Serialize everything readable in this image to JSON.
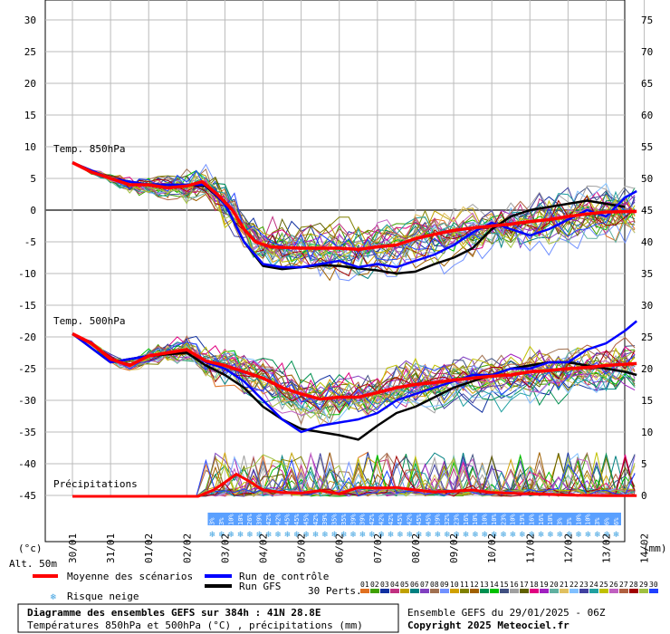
{
  "chart_data": {
    "type": "line",
    "units_left": "(°c)",
    "units_right": "(mm)",
    "altitude": "Alt. 50m",
    "left_axis": [
      30,
      25,
      20,
      15,
      10,
      5,
      0,
      -5,
      -10,
      -15,
      -20,
      -25,
      -30,
      -35,
      -40,
      -45
    ],
    "right_axis": [
      75,
      70,
      65,
      60,
      55,
      50,
      45,
      40,
      35,
      30,
      25,
      20,
      15,
      10,
      5,
      0
    ],
    "dates": [
      "30/01",
      "31/01",
      "01/02",
      "02/02",
      "03/02",
      "04/02",
      "05/02",
      "06/02",
      "07/02",
      "08/02",
      "09/02",
      "10/02",
      "11/02",
      "12/02",
      "13/02",
      "14/02"
    ],
    "panel_labels": {
      "t850": "Temp. 850hPa",
      "t500": "Temp. 500hPa",
      "precip": "Précipitations"
    },
    "snow_risk_percent": [
      "3%",
      "3%",
      "10%",
      "10%",
      "26%",
      "39%",
      "42%",
      "42%",
      "45%",
      "45%",
      "45%",
      "42%",
      "39%",
      "35%",
      "35%",
      "39%",
      "39%",
      "42%",
      "42%",
      "42%",
      "45%",
      "42%",
      "45%",
      "45%",
      "39%",
      "32%",
      "23%",
      "16%",
      "10%",
      "10%",
      "10%",
      "23%",
      "10%",
      "19%",
      "16%",
      "16%",
      "10%",
      "3%",
      "3%",
      "10%",
      "10%",
      "3%",
      "6%",
      "6%"
    ],
    "t850_mean": [
      [
        0,
        7.5
      ],
      [
        0.5,
        6
      ],
      [
        1,
        5
      ],
      [
        1.5,
        4
      ],
      [
        2,
        4
      ],
      [
        2.5,
        3.5
      ],
      [
        3,
        3.8
      ],
      [
        3.4,
        4.5
      ],
      [
        3.8,
        2.5
      ],
      [
        4.2,
        0
      ],
      [
        4.5,
        -3
      ],
      [
        4.8,
        -5
      ],
      [
        5.2,
        -5.8
      ],
      [
        6,
        -6
      ],
      [
        7,
        -6
      ],
      [
        7.5,
        -6.2
      ],
      [
        8,
        -5.8
      ],
      [
        8.5,
        -5.5
      ],
      [
        9,
        -4.5
      ],
      [
        9.5,
        -3.8
      ],
      [
        10,
        -3.2
      ],
      [
        10.5,
        -2.8
      ],
      [
        11,
        -2.5
      ],
      [
        11.5,
        -2.2
      ],
      [
        12,
        -1.8
      ],
      [
        12.5,
        -1.5
      ],
      [
        13,
        -1
      ],
      [
        13.5,
        -0.6
      ],
      [
        14,
        -0.3
      ],
      [
        14.8,
        -0.2
      ]
    ],
    "t850_control": [
      [
        0,
        7.5
      ],
      [
        1,
        5
      ],
      [
        2,
        4
      ],
      [
        3,
        4
      ],
      [
        3.5,
        4
      ],
      [
        4,
        1
      ],
      [
        4.5,
        -5
      ],
      [
        5,
        -8.5
      ],
      [
        5.5,
        -9
      ],
      [
        6,
        -9
      ],
      [
        6.5,
        -8.5
      ],
      [
        7,
        -8
      ],
      [
        7.5,
        -9
      ],
      [
        8,
        -8.5
      ],
      [
        8.5,
        -9
      ],
      [
        9,
        -8
      ],
      [
        9.5,
        -7
      ],
      [
        10,
        -5.5
      ],
      [
        10.5,
        -3.5
      ],
      [
        11,
        -2
      ],
      [
        11.5,
        -3
      ],
      [
        12,
        -4
      ],
      [
        12.5,
        -3
      ],
      [
        13,
        -1.5
      ],
      [
        13.5,
        0
      ],
      [
        14,
        -1
      ],
      [
        14.5,
        2
      ],
      [
        14.8,
        3
      ]
    ],
    "t850_gfs": [
      [
        0,
        7.5
      ],
      [
        1,
        5
      ],
      [
        2,
        4
      ],
      [
        3,
        4
      ],
      [
        3.5,
        3.8
      ],
      [
        4,
        1
      ],
      [
        4.5,
        -5
      ],
      [
        5,
        -8.8
      ],
      [
        5.5,
        -9.3
      ],
      [
        6,
        -9
      ],
      [
        6.5,
        -8.7
      ],
      [
        7,
        -8.8
      ],
      [
        7.5,
        -9.2
      ],
      [
        8,
        -9.5
      ],
      [
        8.5,
        -10
      ],
      [
        9,
        -9.7
      ],
      [
        9.5,
        -8.5
      ],
      [
        10,
        -7.5
      ],
      [
        10.5,
        -6
      ],
      [
        11,
        -3
      ],
      [
        11.5,
        -1
      ],
      [
        12,
        0
      ],
      [
        12.5,
        0.5
      ],
      [
        13,
        1
      ],
      [
        13.5,
        1.5
      ],
      [
        14,
        1
      ],
      [
        14.5,
        0.5
      ]
    ],
    "t500_mean": [
      [
        0,
        -19.5
      ],
      [
        0.5,
        -21
      ],
      [
        1,
        -23.5
      ],
      [
        1.5,
        -24.5
      ],
      [
        2,
        -23
      ],
      [
        2.5,
        -22.5
      ],
      [
        3,
        -22
      ],
      [
        3.5,
        -23.8
      ],
      [
        4,
        -24.5
      ],
      [
        4.5,
        -25.5
      ],
      [
        5,
        -26.5
      ],
      [
        5.5,
        -28
      ],
      [
        6,
        -29
      ],
      [
        6.5,
        -29.8
      ],
      [
        7,
        -29.5
      ],
      [
        7.5,
        -29.5
      ],
      [
        8,
        -28.8
      ],
      [
        8.5,
        -28
      ],
      [
        9,
        -27.5
      ],
      [
        9.5,
        -27.2
      ],
      [
        10,
        -26.8
      ],
      [
        10.5,
        -26.5
      ],
      [
        11,
        -26.2
      ],
      [
        11.5,
        -26
      ],
      [
        12,
        -25.5
      ],
      [
        12.5,
        -25.3
      ],
      [
        13,
        -25
      ],
      [
        13.5,
        -24.8
      ],
      [
        14,
        -24.5
      ],
      [
        14.8,
        -24.2
      ]
    ],
    "t500_control": [
      [
        0,
        -19.5
      ],
      [
        1,
        -24
      ],
      [
        2,
        -23
      ],
      [
        3,
        -22
      ],
      [
        3.5,
        -24
      ],
      [
        4,
        -25
      ],
      [
        4.5,
        -27
      ],
      [
        5,
        -30
      ],
      [
        5.5,
        -33
      ],
      [
        6,
        -35
      ],
      [
        6.5,
        -34
      ],
      [
        7,
        -33.5
      ],
      [
        7.5,
        -33
      ],
      [
        8,
        -32
      ],
      [
        8.5,
        -30
      ],
      [
        9,
        -29
      ],
      [
        9.5,
        -28
      ],
      [
        10,
        -27
      ],
      [
        10.5,
        -26
      ],
      [
        11,
        -26
      ],
      [
        11.5,
        -25
      ],
      [
        12,
        -25
      ],
      [
        12.5,
        -24
      ],
      [
        13,
        -24
      ],
      [
        13.5,
        -22
      ],
      [
        14,
        -21
      ],
      [
        14.5,
        -19
      ],
      [
        14.8,
        -17.5
      ]
    ],
    "t500_gfs": [
      [
        0,
        -19.5
      ],
      [
        1,
        -24
      ],
      [
        2,
        -23
      ],
      [
        3,
        -22.5
      ],
      [
        3.5,
        -24.5
      ],
      [
        4,
        -26
      ],
      [
        4.5,
        -28
      ],
      [
        5,
        -31
      ],
      [
        5.5,
        -33
      ],
      [
        6,
        -34.5
      ],
      [
        6.5,
        -35
      ],
      [
        7,
        -35.5
      ],
      [
        7.5,
        -36.2
      ],
      [
        8,
        -34
      ],
      [
        8.5,
        -32
      ],
      [
        9,
        -31
      ],
      [
        9.5,
        -29.5
      ],
      [
        10,
        -28
      ],
      [
        10.5,
        -27
      ],
      [
        11,
        -26
      ],
      [
        11.5,
        -25
      ],
      [
        12,
        -24.5
      ],
      [
        12.5,
        -24
      ],
      [
        13,
        -24
      ],
      [
        13.5,
        -24.5
      ],
      [
        14,
        -25
      ],
      [
        14.5,
        -25.5
      ],
      [
        14.8,
        -26
      ]
    ],
    "precip_mean": [
      [
        0,
        0
      ],
      [
        3.3,
        0
      ],
      [
        3.7,
        1
      ],
      [
        4,
        2.2
      ],
      [
        4.3,
        3.5
      ],
      [
        4.6,
        2.5
      ],
      [
        5,
        1
      ],
      [
        5.5,
        0.6
      ],
      [
        6,
        0.5
      ],
      [
        6.5,
        0.9
      ],
      [
        7,
        0.4
      ],
      [
        7.5,
        1.4
      ],
      [
        8,
        1.3
      ],
      [
        8.5,
        1.4
      ],
      [
        9,
        1
      ],
      [
        9.5,
        0.7
      ],
      [
        10,
        0.8
      ],
      [
        10.5,
        1
      ],
      [
        11,
        0.6
      ],
      [
        11.5,
        0.5
      ],
      [
        12,
        0.4
      ],
      [
        12.5,
        0.3
      ],
      [
        13,
        0.2
      ],
      [
        14,
        0.1
      ],
      [
        14.8,
        0.1
      ]
    ],
    "legend": {
      "mean": "Moyenne des scénarios",
      "control": "Run de contrôle",
      "gfs": "Run GFS",
      "snow": "Risque neige",
      "perts": "30 Perts.",
      "members": [
        "01",
        "02",
        "03",
        "04",
        "05",
        "06",
        "07",
        "08",
        "09",
        "10",
        "11",
        "12",
        "13",
        "14",
        "15",
        "16",
        "17",
        "18",
        "19",
        "20",
        "21",
        "22",
        "23",
        "24",
        "25",
        "26",
        "27",
        "28",
        "29",
        "30"
      ]
    },
    "member_colors": [
      "#e07020",
      "#40a000",
      "#1030a0",
      "#c03080",
      "#c0a000",
      "#008080",
      "#8040c0",
      "#a07050",
      "#7090ff",
      "#d0a000",
      "#808000",
      "#a06000",
      "#009050",
      "#00c000",
      "#405080",
      "#a0a0a0",
      "#606000",
      "#e00080",
      "#a020c0",
      "#60b0a0",
      "#e0c060",
      "#80c0ff",
      "#4040a0",
      "#20a0a0",
      "#c0c000",
      "#c060c0",
      "#b06040",
      "#a00000",
      "#a0c040",
      "#2040ff"
    ],
    "colors": {
      "mean": "#ff0000",
      "control": "#0000ff",
      "gfs": "#000000"
    }
  },
  "footer": {
    "title": "Diagramme des ensembles GEFS sur 384h : 41N 28.8E",
    "subtitle": "Températures 850hPa et 500hPa (°C) , précipitations (mm)",
    "run": "Ensemble GEFS du 29/01/2025 - 06Z",
    "copyright": "Copyright 2025 Meteociel.fr"
  }
}
